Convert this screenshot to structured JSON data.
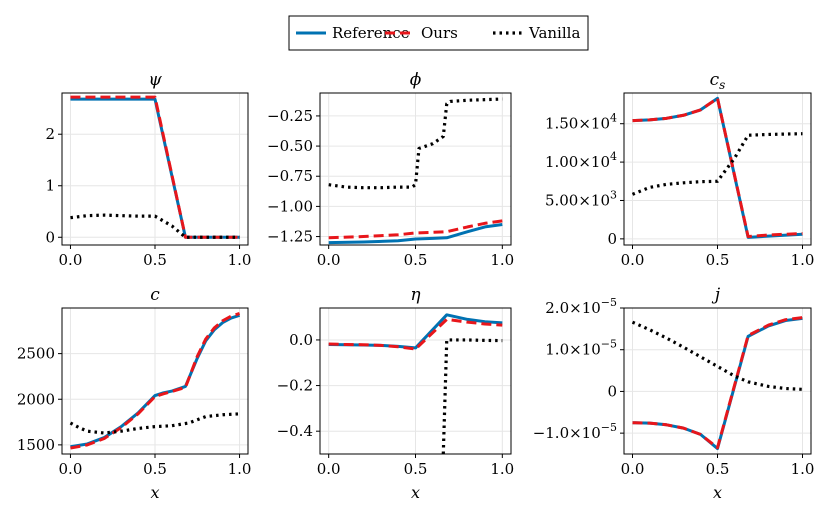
{
  "legend": {
    "entries": [
      {
        "label": "Reference",
        "color": "#0072b2",
        "style": "solid"
      },
      {
        "label": "Ours",
        "color": "#e8161b",
        "style": "dashed"
      },
      {
        "label": "Vanilla",
        "color": "#000000",
        "style": "dotted"
      }
    ]
  },
  "chart_data": [
    {
      "type": "line",
      "title": "ψ",
      "xlabel": "",
      "xlim": [
        -0.05,
        1.05
      ],
      "ylim": [
        -0.15,
        2.8
      ],
      "xticks": [
        {
          "v": 0,
          "label": "0.0"
        },
        {
          "v": 0.5,
          "label": "0.5"
        },
        {
          "v": 1,
          "label": "1.0"
        }
      ],
      "yticks": [
        {
          "v": 0,
          "label": "0"
        },
        {
          "v": 1,
          "label": "1"
        },
        {
          "v": 2,
          "label": "2"
        }
      ],
      "series": [
        {
          "name": "Reference",
          "x": [
            0,
            0.5,
            0.68,
            1.0
          ],
          "y": [
            2.68,
            2.68,
            0.0,
            0.0
          ]
        },
        {
          "name": "Ours",
          "x": [
            0,
            0.5,
            0.68,
            1.0
          ],
          "y": [
            2.72,
            2.72,
            0.0,
            0.0
          ]
        },
        {
          "name": "Vanilla",
          "x": [
            0,
            0.1,
            0.2,
            0.3,
            0.4,
            0.5,
            0.6,
            0.68,
            0.8,
            1.0
          ],
          "y": [
            0.38,
            0.42,
            0.43,
            0.42,
            0.41,
            0.41,
            0.22,
            0.0,
            0.0,
            0.0
          ]
        }
      ]
    },
    {
      "type": "line",
      "title": "ϕ",
      "xlabel": "",
      "xlim": [
        -0.05,
        1.05
      ],
      "ylim": [
        -1.32,
        -0.06
      ],
      "xticks": [
        {
          "v": 0,
          "label": "0.0"
        },
        {
          "v": 0.5,
          "label": "0.5"
        },
        {
          "v": 1,
          "label": "1.0"
        }
      ],
      "yticks": [
        {
          "v": -0.25,
          "label": "−0.25"
        },
        {
          "v": -0.5,
          "label": "−0.50"
        },
        {
          "v": -0.75,
          "label": "−0.75"
        },
        {
          "v": -1.0,
          "label": "−1.00"
        },
        {
          "v": -1.25,
          "label": "−1.25"
        }
      ],
      "series": [
        {
          "name": "Reference",
          "x": [
            0,
            0.2,
            0.4,
            0.5,
            0.6,
            0.68,
            0.8,
            0.9,
            1.0
          ],
          "y": [
            -1.3,
            -1.295,
            -1.285,
            -1.27,
            -1.265,
            -1.26,
            -1.21,
            -1.17,
            -1.15
          ]
        },
        {
          "name": "Ours",
          "x": [
            0,
            0.2,
            0.4,
            0.5,
            0.6,
            0.68,
            0.8,
            0.9,
            1.0
          ],
          "y": [
            -1.26,
            -1.25,
            -1.235,
            -1.22,
            -1.215,
            -1.21,
            -1.17,
            -1.14,
            -1.12
          ]
        },
        {
          "name": "Vanilla",
          "x": [
            0,
            0.1,
            0.2,
            0.3,
            0.4,
            0.48,
            0.5,
            0.52,
            0.6,
            0.66,
            0.68,
            0.7,
            0.8,
            1.0
          ],
          "y": [
            -0.82,
            -0.84,
            -0.845,
            -0.845,
            -0.84,
            -0.84,
            -0.82,
            -0.52,
            -0.48,
            -0.42,
            -0.15,
            -0.13,
            -0.12,
            -0.11
          ]
        }
      ]
    },
    {
      "type": "line",
      "title": "c_s",
      "title_main": "c",
      "title_sub": "s",
      "xlabel": "",
      "xlim": [
        -0.05,
        1.05
      ],
      "ylim": [
        -800,
        19000
      ],
      "xticks": [
        {
          "v": 0,
          "label": "0.0"
        },
        {
          "v": 0.5,
          "label": "0.5"
        },
        {
          "v": 1,
          "label": "1.0"
        }
      ],
      "yticks": [
        {
          "v": 0,
          "label": "0"
        },
        {
          "v": 5000,
          "mant": "5.00",
          "exp": "3"
        },
        {
          "v": 10000,
          "mant": "1.00",
          "exp": "4"
        },
        {
          "v": 15000,
          "mant": "1.50",
          "exp": "4"
        }
      ],
      "series": [
        {
          "name": "Reference",
          "x": [
            0,
            0.1,
            0.2,
            0.3,
            0.4,
            0.5,
            0.68,
            0.8,
            1.0
          ],
          "y": [
            15400,
            15500,
            15700,
            16100,
            16800,
            18300,
            200,
            350,
            600
          ]
        },
        {
          "name": "Ours",
          "x": [
            0,
            0.1,
            0.2,
            0.3,
            0.4,
            0.5,
            0.68,
            0.8,
            1.0
          ],
          "y": [
            15400,
            15500,
            15700,
            16100,
            16800,
            18300,
            300,
            500,
            700
          ]
        },
        {
          "name": "Vanilla",
          "x": [
            0,
            0.1,
            0.2,
            0.3,
            0.4,
            0.5,
            0.6,
            0.68,
            0.8,
            1.0
          ],
          "y": [
            5800,
            6700,
            7100,
            7300,
            7450,
            7500,
            10500,
            13500,
            13600,
            13700
          ]
        }
      ]
    },
    {
      "type": "line",
      "title": "c",
      "xlabel": "x",
      "xlim": [
        -0.05,
        1.05
      ],
      "ylim": [
        1400,
        3000
      ],
      "xticks": [
        {
          "v": 0,
          "label": "0.0"
        },
        {
          "v": 0.5,
          "label": "0.5"
        },
        {
          "v": 1,
          "label": "1.0"
        }
      ],
      "yticks": [
        {
          "v": 1500,
          "label": "1500"
        },
        {
          "v": 2000,
          "label": "2000"
        },
        {
          "v": 2500,
          "label": "2500"
        }
      ],
      "series": [
        {
          "name": "Reference",
          "x": [
            0,
            0.1,
            0.2,
            0.3,
            0.4,
            0.5,
            0.55,
            0.6,
            0.68,
            0.75,
            0.8,
            0.85,
            0.9,
            0.95,
            1.0
          ],
          "y": [
            1480,
            1510,
            1580,
            1700,
            1850,
            2040,
            2070,
            2090,
            2140,
            2450,
            2640,
            2760,
            2840,
            2890,
            2920
          ]
        },
        {
          "name": "Ours",
          "x": [
            0,
            0.1,
            0.2,
            0.3,
            0.4,
            0.5,
            0.55,
            0.6,
            0.68,
            0.75,
            0.8,
            0.85,
            0.9,
            0.95,
            1.0
          ],
          "y": [
            1465,
            1500,
            1570,
            1690,
            1840,
            2030,
            2060,
            2085,
            2130,
            2470,
            2660,
            2780,
            2860,
            2910,
            2940
          ]
        },
        {
          "name": "Vanilla",
          "x": [
            0,
            0.05,
            0.1,
            0.2,
            0.3,
            0.4,
            0.5,
            0.6,
            0.7,
            0.8,
            0.9,
            1.0
          ],
          "y": [
            1740,
            1690,
            1650,
            1630,
            1650,
            1680,
            1700,
            1710,
            1740,
            1810,
            1830,
            1840
          ]
        }
      ]
    },
    {
      "type": "line",
      "title": "η",
      "xlabel": "x",
      "xlim": [
        -0.05,
        1.05
      ],
      "ylim": [
        -0.5,
        0.14
      ],
      "xticks": [
        {
          "v": 0,
          "label": "0.0"
        },
        {
          "v": 0.5,
          "label": "0.5"
        },
        {
          "v": 1,
          "label": "1.0"
        }
      ],
      "yticks": [
        {
          "v": 0,
          "label": "0.0"
        },
        {
          "v": -0.2,
          "label": "−0.2"
        },
        {
          "v": -0.4,
          "label": "−0.4"
        }
      ],
      "series": [
        {
          "name": "Reference",
          "x": [
            0,
            0.1,
            0.2,
            0.3,
            0.4,
            0.5,
            0.68,
            0.8,
            0.9,
            1.0
          ],
          "y": [
            -0.02,
            -0.021,
            -0.022,
            -0.024,
            -0.028,
            -0.035,
            0.11,
            0.09,
            0.08,
            0.075
          ]
        },
        {
          "name": "Ours",
          "x": [
            0,
            0.1,
            0.2,
            0.3,
            0.4,
            0.5,
            0.68,
            0.8,
            0.9,
            1.0
          ],
          "y": [
            -0.018,
            -0.02,
            -0.021,
            -0.024,
            -0.03,
            -0.04,
            0.09,
            0.078,
            0.07,
            0.065
          ]
        },
        {
          "name": "Vanilla",
          "x": [
            0.66,
            0.68,
            0.7,
            0.8,
            0.9,
            1.0
          ],
          "y": [
            -0.5,
            0.0,
            0.0,
            0.0,
            -0.002,
            -0.003
          ]
        }
      ]
    },
    {
      "type": "line",
      "title": "j",
      "xlabel": "x",
      "xlim": [
        -0.05,
        1.05
      ],
      "ylim": [
        -1.5e-05,
        2e-05
      ],
      "xticks": [
        {
          "v": 0,
          "label": "0.0"
        },
        {
          "v": 0.5,
          "label": "0.5"
        },
        {
          "v": 1,
          "label": "1.0"
        }
      ],
      "yticks": [
        {
          "v": 0,
          "label": "0"
        },
        {
          "v": 1e-05,
          "mant": "1.0",
          "exp": "−5"
        },
        {
          "v": 2e-05,
          "mant": "2.0",
          "exp": "−5"
        },
        {
          "v": -1e-05,
          "mant": "−1.0",
          "exp": "−5"
        }
      ],
      "series": [
        {
          "name": "Reference",
          "x": [
            0,
            0.1,
            0.2,
            0.3,
            0.4,
            0.5,
            0.68,
            0.8,
            0.9,
            1.0
          ],
          "y": [
            -7.5e-06,
            -7.6e-06,
            -8e-06,
            -8.8e-06,
            -1.03e-05,
            -1.37e-05,
            1.32e-05,
            1.57e-05,
            1.7e-05,
            1.75e-05
          ]
        },
        {
          "name": "Ours",
          "x": [
            0,
            0.1,
            0.2,
            0.3,
            0.4,
            0.5,
            0.68,
            0.8,
            0.9,
            1.0
          ],
          "y": [
            -7.5e-06,
            -7.6e-06,
            -8e-06,
            -8.8e-06,
            -1.03e-05,
            -1.35e-05,
            1.34e-05,
            1.59e-05,
            1.72e-05,
            1.77e-05
          ]
        },
        {
          "name": "Vanilla",
          "x": [
            0,
            0.1,
            0.2,
            0.3,
            0.4,
            0.5,
            0.6,
            0.68,
            0.8,
            0.9,
            1.0
          ],
          "y": [
            1.66e-05,
            1.48e-05,
            1.28e-05,
            1.06e-05,
            8.3e-06,
            6e-06,
            3.7e-06,
            2.3e-06,
            1.2e-06,
            7e-07,
            5e-07
          ]
        }
      ]
    }
  ]
}
